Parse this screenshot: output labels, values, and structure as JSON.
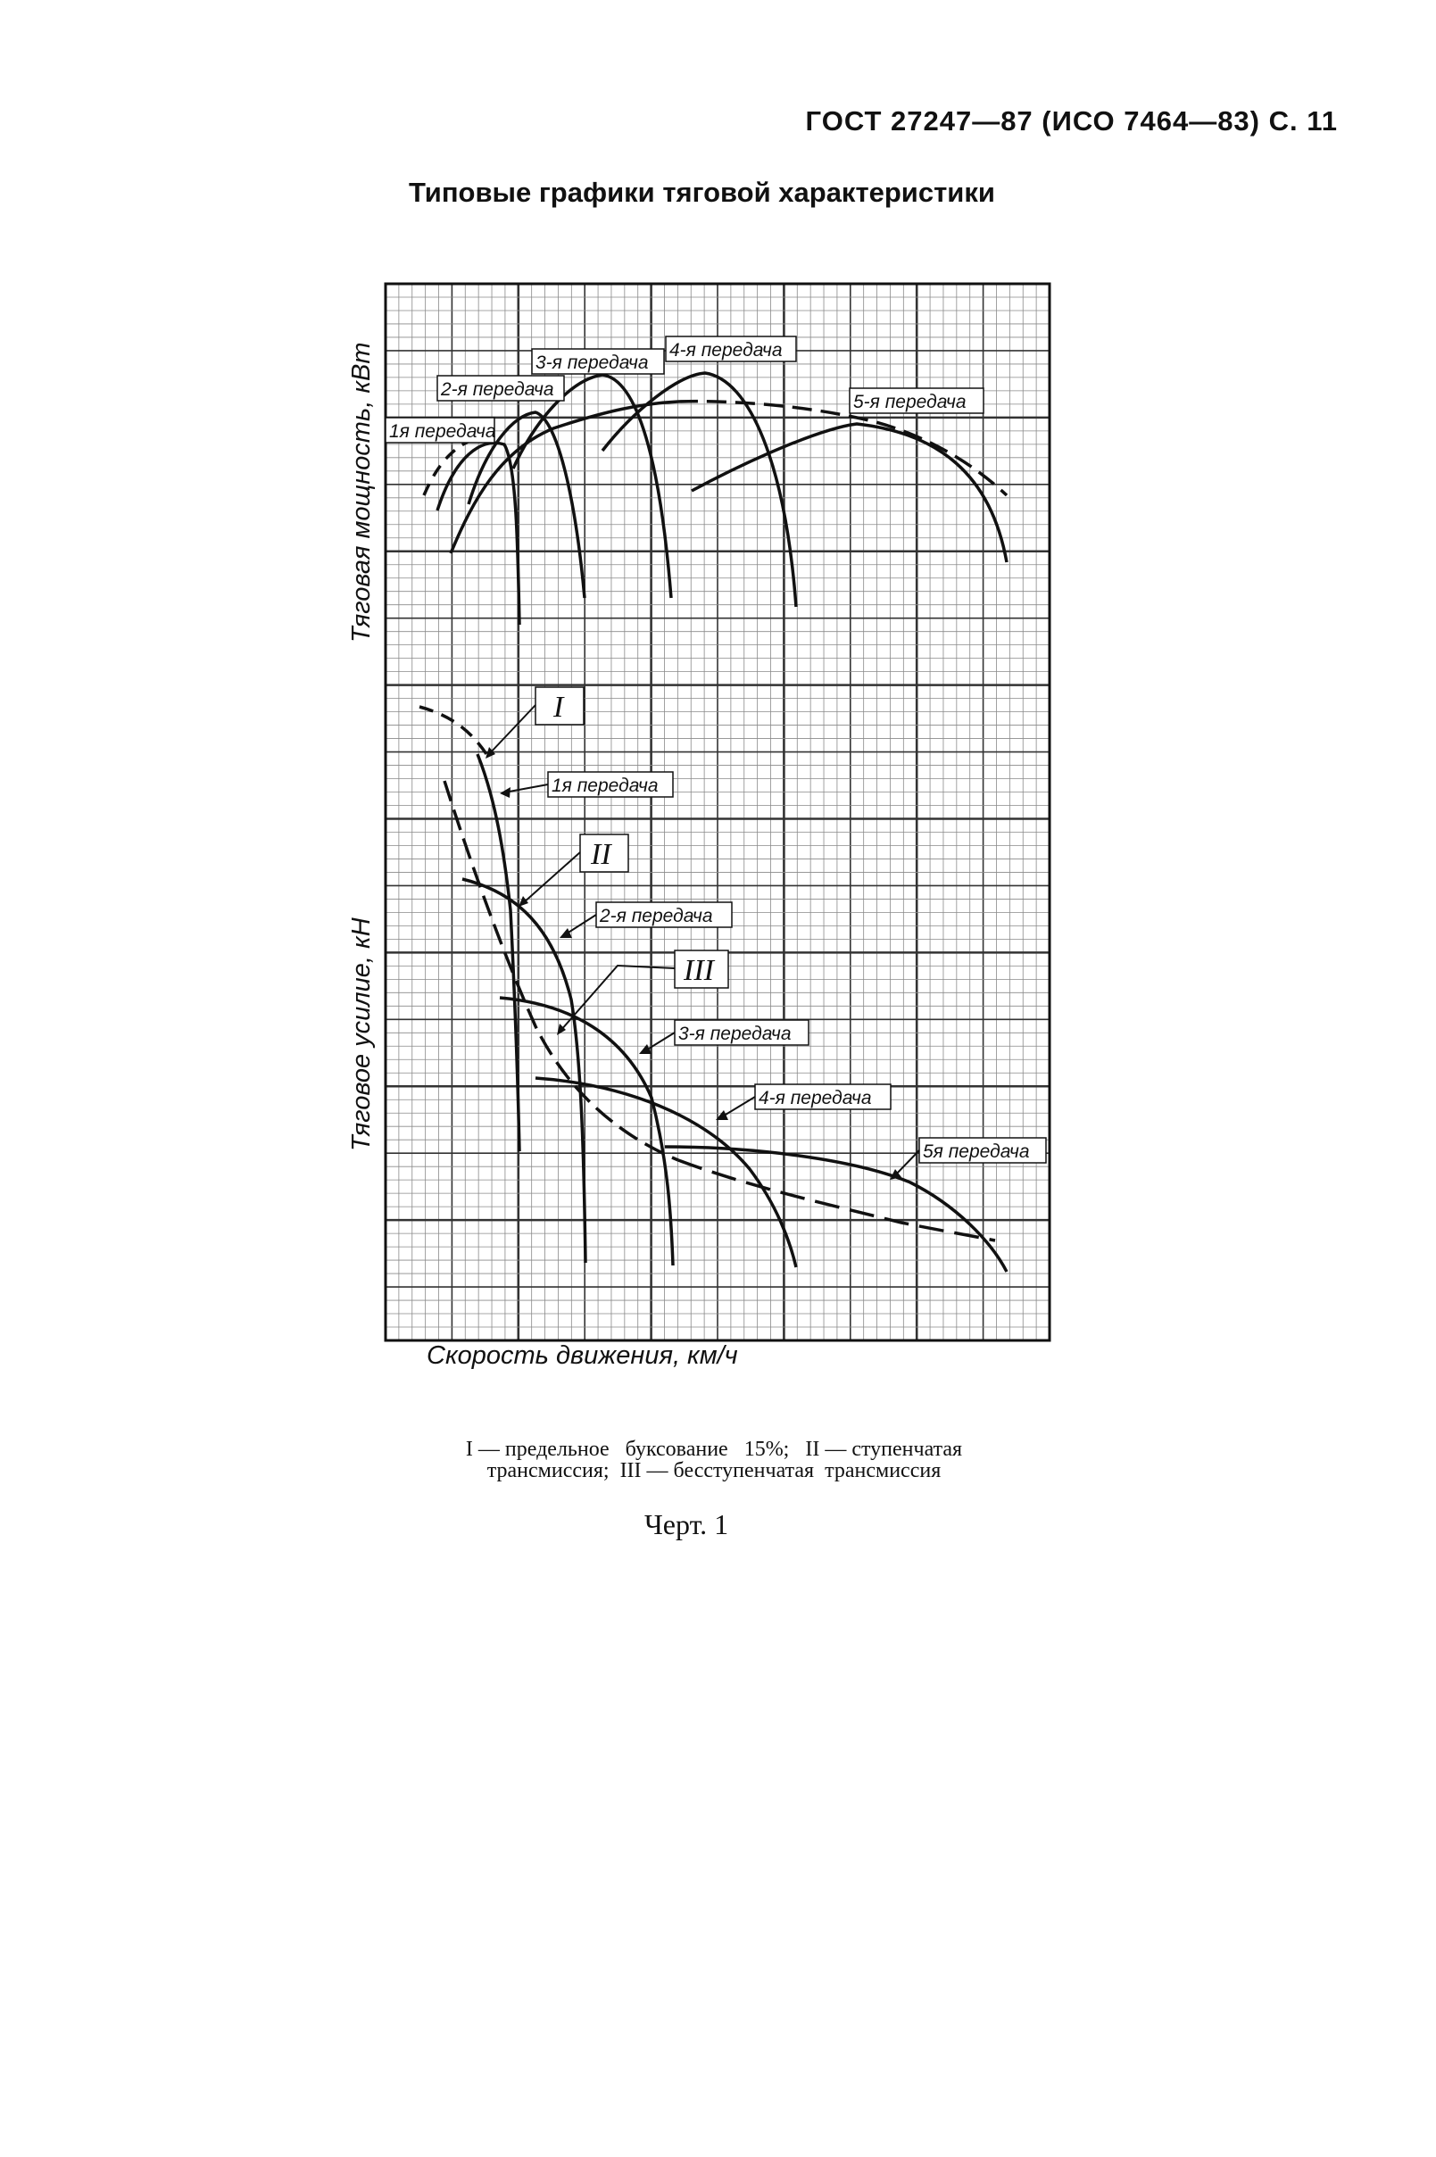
{
  "page": {
    "header": "ГОСТ 27247—87 (ИСО 7464—83) С. 11",
    "title": "Типовые графики тяговой характеристики",
    "caption_line1": "I — предельное   буксование   15%;   II — ступенчатая",
    "caption_line2": "трансмиссия;  III — бесступенчатая  трансмиссия",
    "figure_no": "Черт. 1"
  },
  "chart_data": {
    "type": "line",
    "xlabel": "Скорость движения, км/ч",
    "ylabel_top": "Тяговая мощность, кВт",
    "ylabel_bottom": "Тяговое усилие, кН",
    "grid": true,
    "gear_labels_power": [
      "1я передача",
      "2-я передача",
      "3-я передача",
      "4-я передача",
      "5-я передача"
    ],
    "gear_labels_force": [
      "1я передача",
      "2-я передача",
      "3-я передача",
      "4-я передача",
      "5я передача"
    ],
    "curve_labels": [
      "I",
      "II",
      "III"
    ],
    "colors": {
      "ink": "#111111",
      "grid_major": "#333333",
      "grid_minor": "#8a8a8a"
    }
  }
}
